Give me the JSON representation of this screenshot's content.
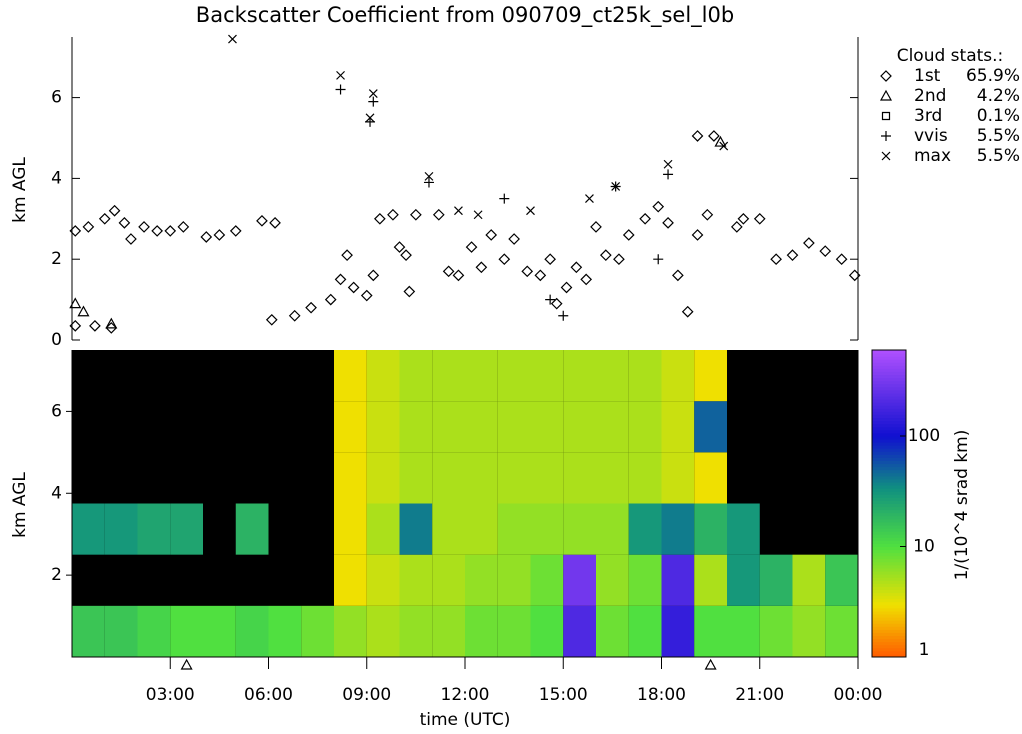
{
  "chart_data": [
    {
      "type": "scatter",
      "title": "Backscatter Coefficient from 090709_ct25k_sel_l0b",
      "y_label": "km AGL",
      "xlim": [
        0,
        24
      ],
      "ylim": [
        0,
        7.5
      ],
      "yticks": [
        0,
        2,
        4,
        6
      ],
      "legend_title": "Cloud stats.:",
      "series": [
        {
          "name": "1st",
          "marker": "diamond",
          "stat": 65.9,
          "stat_label": "65.9%",
          "x": [
            0.1,
            0.5,
            1,
            1.3,
            1.6,
            1.8,
            2.2,
            2.6,
            3.0,
            3.4,
            4.1,
            4.5,
            5.0,
            5.8,
            6.2,
            6.1,
            6.8,
            7.3,
            7.9,
            8.2,
            8.4,
            8.6,
            9.0,
            9.2,
            9.4,
            9.8,
            10.5,
            11.2,
            10,
            10.2,
            10.3,
            11.5,
            11.8,
            12.2,
            12.5,
            12.8,
            13.2,
            13.5,
            13.9,
            14.3,
            14.6,
            14.8,
            15.1,
            15.4,
            15.7,
            16,
            16.3,
            16.7,
            17,
            17.5,
            17.9,
            18.2,
            18.5,
            18.8,
            19.1,
            19.4,
            19.1,
            19.6,
            20.3,
            20.5,
            21,
            21.5,
            22,
            22.5,
            23,
            23.5,
            23.9,
            0.1,
            0.7,
            1.2
          ],
          "y": [
            2.7,
            2.8,
            3.0,
            3.2,
            2.9,
            2.5,
            2.8,
            2.7,
            2.7,
            2.8,
            2.55,
            2.6,
            2.7,
            2.95,
            2.9,
            0.5,
            0.6,
            0.8,
            1.0,
            1.5,
            2.1,
            1.3,
            1.1,
            1.6,
            3.0,
            3.1,
            3.1,
            3.1,
            2.3,
            2.1,
            1.2,
            1.7,
            1.6,
            2.3,
            1.8,
            2.6,
            2.0,
            2.5,
            1.7,
            1.6,
            2.0,
            0.9,
            1.3,
            1.8,
            1.5,
            2.8,
            2.1,
            2.0,
            2.6,
            3.0,
            3.3,
            2.9,
            1.6,
            0.7,
            2.6,
            3.1,
            5.05,
            5.05,
            2.8,
            3.0,
            3.0,
            2.0,
            2.1,
            2.4,
            2.2,
            2.0,
            1.6,
            0.35,
            0.35,
            0.3
          ]
        },
        {
          "name": "2nd",
          "marker": "triangle",
          "stat": 4.2,
          "stat_label": "4.2%",
          "x": [
            0.1,
            0.35,
            1.2,
            19.8
          ],
          "y": [
            0.9,
            0.7,
            0.4,
            4.9
          ]
        },
        {
          "name": "3rd",
          "marker": "square",
          "stat": 0.1,
          "stat_label": "0.1%",
          "x": [],
          "y": []
        },
        {
          "name": "vvis",
          "marker": "plus",
          "stat": 5.5,
          "stat_label": "5.5%",
          "x": [
            8.2,
            9.1,
            9.2,
            10.9,
            13.2,
            15.0,
            16.6,
            18.2,
            17.9,
            14.6
          ],
          "y": [
            6.2,
            5.4,
            5.9,
            3.9,
            3.5,
            0.6,
            3.8,
            4.1,
            2.0,
            1.0
          ]
        },
        {
          "name": "max",
          "marker": "cross",
          "stat": 5.5,
          "stat_label": "5.5%",
          "x": [
            8.2,
            9.1,
            9.2,
            10.9,
            11.8,
            12.4,
            14.0,
            15.8,
            16.6,
            18.2,
            19.9,
            4.9
          ],
          "y": [
            6.55,
            5.5,
            6.1,
            4.05,
            3.2,
            3.1,
            3.2,
            3.5,
            3.8,
            4.35,
            4.8,
            7.45
          ]
        }
      ]
    },
    {
      "type": "heatmap",
      "x_label": "time (UTC)",
      "y_label": "km AGL",
      "xlim": [
        0,
        24
      ],
      "ylim": [
        0,
        7.5
      ],
      "xticks": [
        {
          "value": 3,
          "label": "03:00"
        },
        {
          "value": 6,
          "label": "06:00"
        },
        {
          "value": 9,
          "label": "09:00"
        },
        {
          "value": 12,
          "label": "12:00"
        },
        {
          "value": 15,
          "label": "15:00"
        },
        {
          "value": 18,
          "label": "18:00"
        },
        {
          "value": 21,
          "label": "21:00"
        },
        {
          "value": 24,
          "label": "00:00"
        }
      ],
      "yticks": [
        2,
        4,
        6
      ],
      "markers_x": [
        3.5,
        19.5
      ],
      "x_bins": [
        0,
        1,
        2,
        3,
        4,
        5,
        6,
        7,
        8,
        9,
        10,
        11,
        12,
        13,
        14,
        15,
        16,
        17,
        18,
        19,
        20,
        21,
        22,
        23,
        24
      ],
      "y_bins": [
        0,
        1.25,
        2.5,
        3.75,
        5,
        6.25,
        7.5
      ],
      "z": [
        [
          15,
          15,
          12,
          10,
          10,
          12,
          10,
          8,
          6,
          5,
          6,
          6,
          8,
          8,
          10,
          200,
          8,
          10,
          150,
          10,
          10,
          8,
          6,
          8
        ],
        [
          null,
          null,
          null,
          null,
          null,
          null,
          null,
          null,
          3,
          4,
          5,
          5,
          6,
          6,
          8,
          300,
          6,
          8,
          200,
          5,
          30,
          20,
          5,
          15
        ],
        [
          30,
          30,
          25,
          25,
          null,
          20,
          null,
          null,
          3,
          5,
          40,
          5,
          5,
          6,
          6,
          6,
          6,
          30,
          40,
          20,
          30,
          null,
          null,
          null
        ],
        [
          null,
          null,
          null,
          null,
          null,
          null,
          null,
          null,
          3,
          4,
          5,
          5,
          5,
          5,
          5,
          5,
          5,
          5,
          4,
          3,
          null,
          null,
          null,
          null
        ],
        [
          null,
          null,
          null,
          null,
          null,
          null,
          null,
          null,
          3,
          4,
          5,
          5,
          5,
          5,
          5,
          5,
          5,
          5,
          4,
          50,
          null,
          null,
          null,
          null
        ],
        [
          null,
          null,
          null,
          null,
          null,
          null,
          null,
          null,
          3,
          4,
          5,
          5,
          5,
          5,
          5,
          5,
          5,
          5,
          4,
          3,
          null,
          null,
          null,
          null
        ]
      ],
      "colorbar_label": "1/(10^4 srad km)",
      "clim": [
        1,
        600
      ],
      "cticks": [
        1,
        10,
        100
      ],
      "log_color": true
    }
  ]
}
